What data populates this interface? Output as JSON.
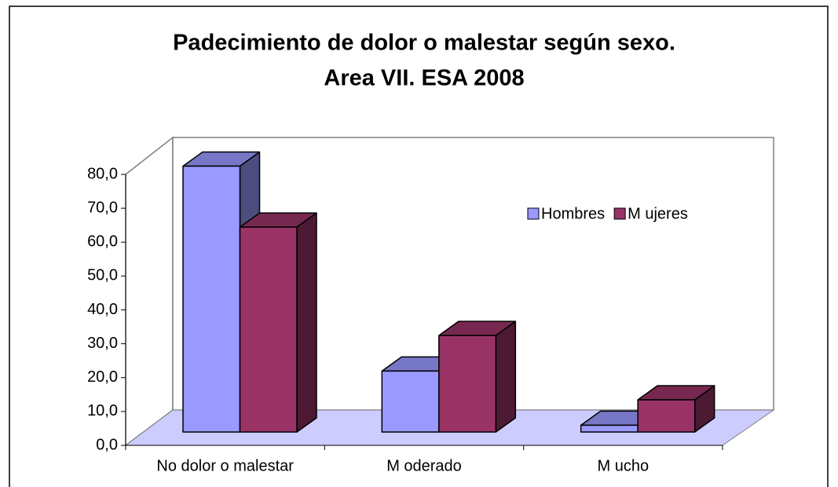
{
  "chart_data": {
    "type": "bar3d",
    "title": [
      "Padecimiento de dolor o malestar según sexo.",
      "Area VII. ESA 2008"
    ],
    "categories": [
      "No dolor o malestar",
      "M oderado",
      "M ucho"
    ],
    "series": [
      {
        "name": "Hombres",
        "color": "#9999ff",
        "values": [
          78.5,
          18,
          2
        ]
      },
      {
        "name": "M ujeres",
        "color": "#993366",
        "values": [
          60.5,
          28.5,
          9.5
        ]
      }
    ],
    "ylim": [
      0,
      80
    ],
    "yticks": [
      {
        "value": 0,
        "label": "0,0"
      },
      {
        "value": 10,
        "label": "10,0"
      },
      {
        "value": 20,
        "label": "20,0"
      },
      {
        "value": 30,
        "label": "30,0"
      },
      {
        "value": 40,
        "label": "40,0"
      },
      {
        "value": 50,
        "label": "50,0"
      },
      {
        "value": 60,
        "label": "60,0"
      },
      {
        "value": 70,
        "label": "70,0"
      },
      {
        "value": 80,
        "label": "80,0"
      }
    ],
    "legend": "upper right"
  }
}
